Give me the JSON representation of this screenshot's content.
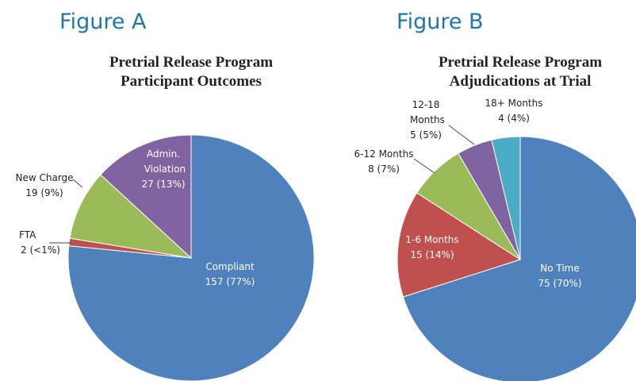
{
  "chart_data": [
    {
      "type": "pie",
      "label": "Figure A",
      "title": [
        "Pretrial Release Program",
        "Participant Outcomes"
      ],
      "categories": [
        "Compliant",
        "FTA",
        "New Charge",
        "Admin. Violation"
      ],
      "values": [
        157,
        2,
        19,
        27
      ],
      "value_labels": [
        "157 (77%)",
        "2 (<1%)",
        "19 (9%)",
        "27 (13%)"
      ],
      "colors": [
        "#4f81bd",
        "#c0504d",
        "#9bbb59",
        "#8064a2"
      ]
    },
    {
      "type": "pie",
      "label": "Figure B",
      "title": [
        "Pretrial Release Program",
        "Adjudications at Trial"
      ],
      "categories": [
        "No Time",
        "1-6 Months",
        "6-12 Months",
        "12-18 Months",
        "18+ Months"
      ],
      "values": [
        75,
        15,
        8,
        5,
        4
      ],
      "value_labels": [
        "75 (70%)",
        "15 (14%)",
        "8 (7%)",
        "5 (5%)",
        "4 (4%)"
      ],
      "colors": [
        "#4f81bd",
        "#c0504d",
        "#9bbb59",
        "#8064a2",
        "#4bacc6"
      ]
    }
  ]
}
